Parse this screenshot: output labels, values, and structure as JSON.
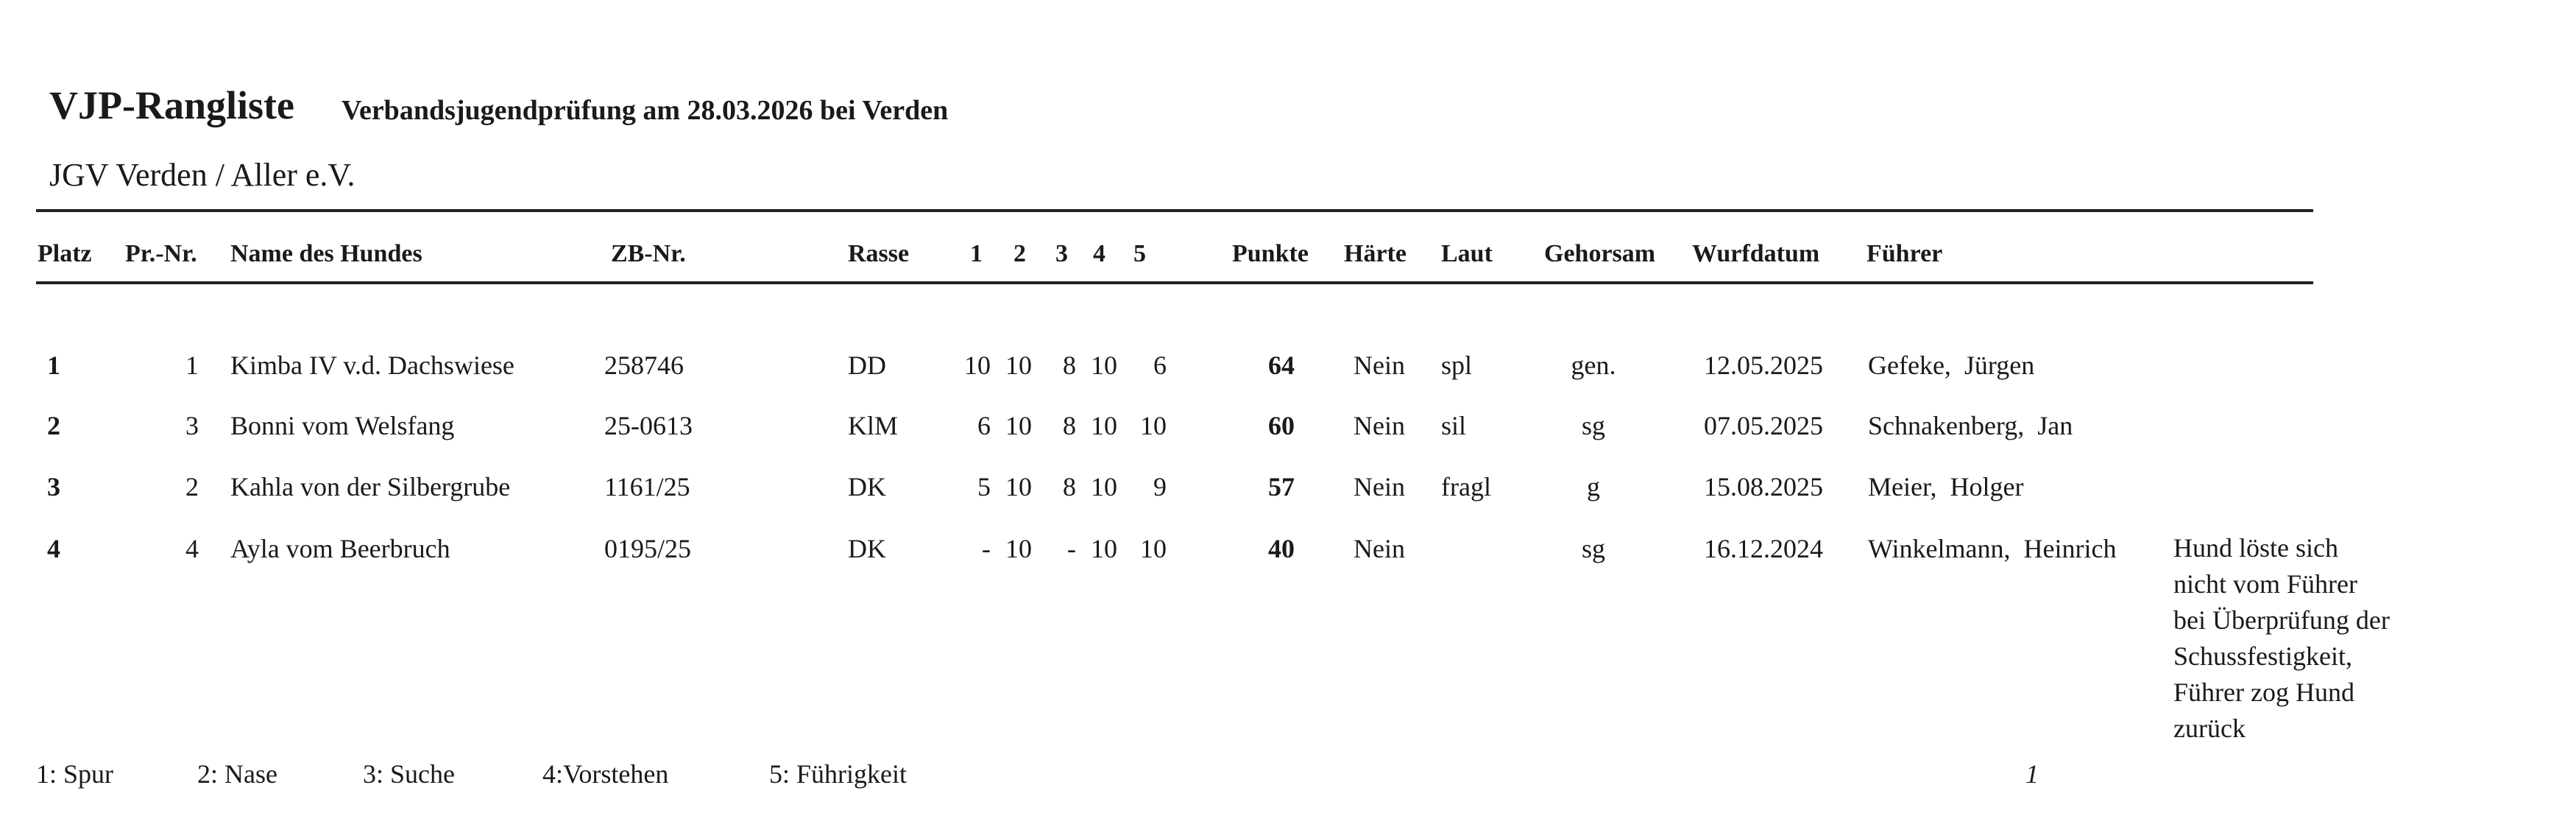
{
  "header": {
    "title": "VJP-Rangliste",
    "subtitle": "Verbandsjugendprüfung am 28.03.2026 bei Verden",
    "organization": "JGV Verden / Aller e.V."
  },
  "columns": {
    "platz": "Platz",
    "prnr": "Pr.-Nr.",
    "name": "Name des Hundes",
    "zb": "ZB-Nr.",
    "rasse": "Rasse",
    "s1": "1",
    "s2": "2",
    "s3": "3",
    "s4": "4",
    "s5": "5",
    "punkte": "Punkte",
    "haerte": "Härte",
    "laut": "Laut",
    "gehorsam": "Gehorsam",
    "wurfdatum": "Wurfdatum",
    "fuehrer": "Führer"
  },
  "rows": [
    {
      "platz": "1",
      "prnr": "1",
      "name": "Kimba IV v.d. Dachswiese",
      "zb": "258746",
      "rasse": "DD",
      "scores": [
        "10",
        "10",
        "8",
        "10",
        "6"
      ],
      "punkte": "64",
      "haerte": "Nein",
      "laut": "spl",
      "gehorsam": "gen.",
      "wurfdatum": "12.05.2025",
      "fuehrer": "Gefeke,  Jürgen",
      "note": ""
    },
    {
      "platz": "2",
      "prnr": "3",
      "name": "Bonni vom Welsfang",
      "zb": "25-0613",
      "rasse": "KlM",
      "scores": [
        "6",
        "10",
        "8",
        "10",
        "10"
      ],
      "punkte": "60",
      "haerte": "Nein",
      "laut": "sil",
      "gehorsam": "sg",
      "wurfdatum": "07.05.2025",
      "fuehrer": "Schnakenberg,  Jan",
      "note": ""
    },
    {
      "platz": "3",
      "prnr": "2",
      "name": "Kahla von der Silbergrube",
      "zb": "1161/25",
      "rasse": "DK",
      "scores": [
        "5",
        "10",
        "8",
        "10",
        "9"
      ],
      "punkte": "57",
      "haerte": "Nein",
      "laut": "fragl",
      "gehorsam": "g",
      "wurfdatum": "15.08.2025",
      "fuehrer": "Meier,  Holger",
      "note": ""
    },
    {
      "platz": "4",
      "prnr": "4",
      "name": "Ayla vom Beerbruch",
      "zb": "0195/25",
      "rasse": "DK",
      "scores": [
        "-",
        "10",
        "-",
        "10",
        "10"
      ],
      "punkte": "40",
      "haerte": "Nein",
      "laut": "",
      "gehorsam": "sg",
      "wurfdatum": "16.12.2024",
      "fuehrer": "Winkelmann,  Heinrich",
      "note": [
        "Hund löste sich",
        "nicht vom Führer",
        "bei Überprüfung der",
        "Schussfestigkeit,",
        "Führer zog Hund",
        "zurück"
      ]
    }
  ],
  "legend": [
    "1: Spur",
    "2: Nase",
    "3: Suche",
    "4:Vorstehen",
    "5: Führigkeit"
  ],
  "page_number": "1"
}
